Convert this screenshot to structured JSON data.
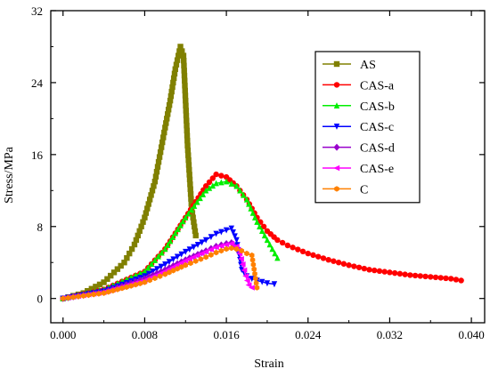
{
  "chart_data": {
    "type": "line",
    "title": "",
    "xlabel": "Strain",
    "ylabel": "Stress/MPa",
    "xlim": [
      -0.0012,
      0.0413
    ],
    "ylim": [
      -2.7,
      32
    ],
    "xticks": [
      "0.000",
      "0.008",
      "0.016",
      "0.024",
      "0.032",
      "0.040"
    ],
    "yticks": [
      "0",
      "8",
      "16",
      "24",
      "32"
    ],
    "xtick_values": [
      0,
      0.008,
      0.016,
      0.024,
      0.032,
      0.04
    ],
    "ytick_values": [
      0,
      8,
      16,
      24,
      32
    ],
    "grid": false,
    "legend_position": "top-right",
    "series": [
      {
        "name": "AS",
        "color": "#808000",
        "marker": "square",
        "x": [
          0,
          0.002,
          0.004,
          0.006,
          0.007,
          0.008,
          0.009,
          0.01,
          0.0105,
          0.011,
          0.0115,
          0.0118,
          0.0122,
          0.0126,
          0.013
        ],
        "y": [
          0,
          0.6,
          1.8,
          4.0,
          6.0,
          9.0,
          13.0,
          19.0,
          22.0,
          25.5,
          28.0,
          27.0,
          17.0,
          10.0,
          7.0
        ]
      },
      {
        "name": "CAS-a",
        "color": "#ff0000",
        "marker": "circle",
        "x": [
          0,
          0.004,
          0.008,
          0.01,
          0.012,
          0.014,
          0.015,
          0.016,
          0.017,
          0.018,
          0.019,
          0.02,
          0.021,
          0.022,
          0.024,
          0.026,
          0.028,
          0.03,
          0.032,
          0.034,
          0.036,
          0.038,
          0.039
        ],
        "y": [
          0,
          1.0,
          3.0,
          5.5,
          9.0,
          12.5,
          13.8,
          13.5,
          12.5,
          11.0,
          9.0,
          7.5,
          6.5,
          5.9,
          5.0,
          4.3,
          3.7,
          3.2,
          2.9,
          2.6,
          2.4,
          2.2,
          2.0
        ]
      },
      {
        "name": "CAS-b",
        "color": "#00ee00",
        "marker": "triangle-up",
        "x": [
          0,
          0.004,
          0.008,
          0.01,
          0.012,
          0.014,
          0.015,
          0.016,
          0.017,
          0.018,
          0.019,
          0.02,
          0.021
        ],
        "y": [
          0,
          1.0,
          3.0,
          5.5,
          9.0,
          12.0,
          12.8,
          13.0,
          12.5,
          11.0,
          8.5,
          6.5,
          4.5
        ]
      },
      {
        "name": "CAS-c",
        "color": "#0000ff",
        "marker": "triangle-down",
        "x": [
          0,
          0.004,
          0.008,
          0.01,
          0.012,
          0.014,
          0.015,
          0.016,
          0.0165,
          0.017,
          0.0175,
          0.018,
          0.0185,
          0.019,
          0.02,
          0.0207
        ],
        "y": [
          0,
          0.8,
          2.5,
          3.8,
          5.2,
          6.5,
          7.2,
          7.6,
          7.8,
          6.5,
          3.2,
          2.5,
          2.2,
          2.0,
          1.7,
          1.6
        ]
      },
      {
        "name": "CAS-d",
        "color": "#9900cc",
        "marker": "diamond",
        "x": [
          0,
          0.004,
          0.008,
          0.01,
          0.012,
          0.014,
          0.015,
          0.016,
          0.0165,
          0.017
        ],
        "y": [
          0,
          0.7,
          2.2,
          3.2,
          4.3,
          5.3,
          5.8,
          6.1,
          6.2,
          5.5
        ]
      },
      {
        "name": "CAS-e",
        "color": "#ff00ff",
        "marker": "triangle-left",
        "x": [
          0,
          0.004,
          0.008,
          0.01,
          0.012,
          0.014,
          0.015,
          0.016,
          0.0165,
          0.017,
          0.0173,
          0.0176,
          0.0179,
          0.0182,
          0.0185
        ],
        "y": [
          0,
          0.7,
          2.0,
          3.0,
          4.2,
          5.2,
          5.7,
          6.0,
          6.1,
          5.8,
          5.0,
          3.8,
          2.5,
          1.5,
          1.2
        ]
      },
      {
        "name": "C",
        "color": "#ff8000",
        "marker": "hexagon",
        "x": [
          0,
          0.004,
          0.008,
          0.01,
          0.012,
          0.014,
          0.015,
          0.016,
          0.0165,
          0.017,
          0.0175,
          0.018,
          0.0185,
          0.019
        ],
        "y": [
          0,
          0.6,
          1.8,
          2.7,
          3.7,
          4.6,
          5.1,
          5.5,
          5.6,
          5.5,
          5.3,
          5.0,
          4.8,
          1.2
        ]
      }
    ]
  }
}
